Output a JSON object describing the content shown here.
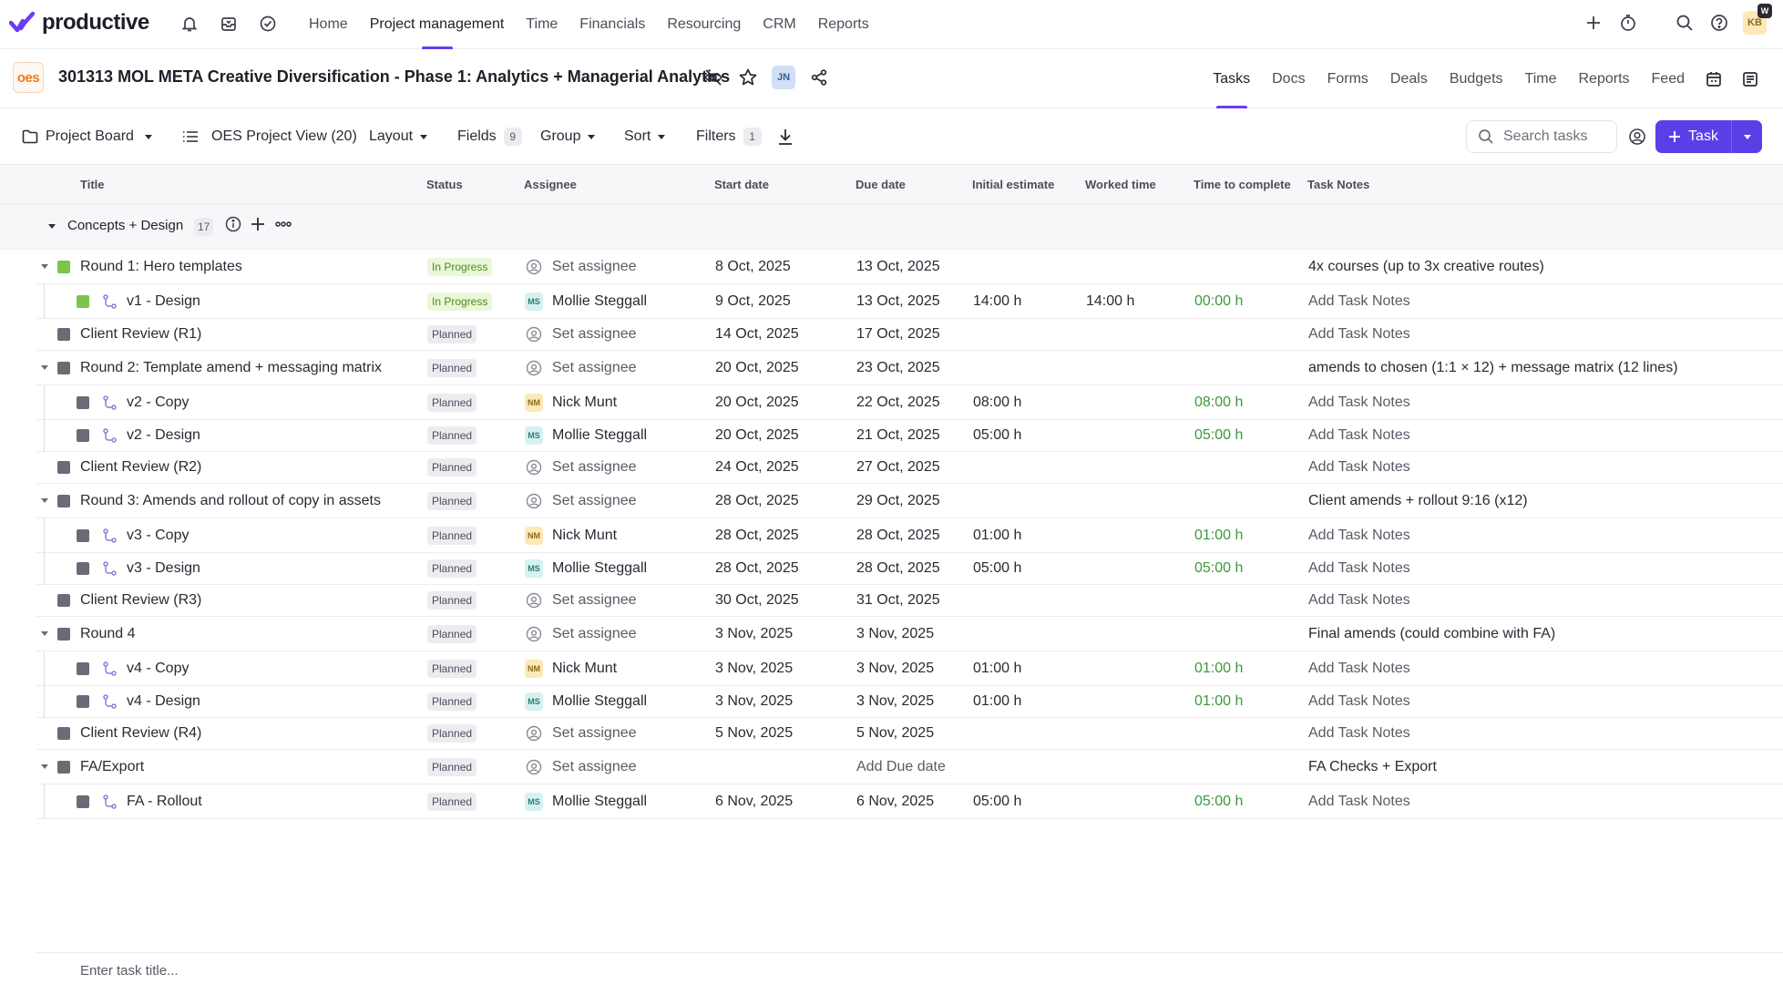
{
  "brand": {
    "name": "productive"
  },
  "nav": {
    "links": [
      "Home",
      "Project management",
      "Time",
      "Financials",
      "Resourcing",
      "CRM",
      "Reports"
    ],
    "active": 1,
    "user_initials": "KB",
    "user_badge": "W"
  },
  "project": {
    "logo_text": "oes",
    "title": "301313 MOL META Creative Diversification - Phase 1: Analytics + Managerial Analytics",
    "member_initials": "JN",
    "tabs": [
      "Tasks",
      "Docs",
      "Forms",
      "Deals",
      "Budgets",
      "Time",
      "Reports",
      "Feed"
    ],
    "active_tab": 0
  },
  "toolbar": {
    "board": "Project Board",
    "view": "OES Project View (20)",
    "layout": "Layout",
    "fields": "Fields",
    "fields_count": "9",
    "group": "Group",
    "sort": "Sort",
    "filters": "Filters",
    "filters_count": "1",
    "search_placeholder": "Search tasks",
    "task_button": "Task"
  },
  "columns": [
    "Title",
    "Status",
    "Assignee",
    "Start date",
    "Due date",
    "Initial estimate",
    "Worked time",
    "Time to complete",
    "Task Notes"
  ],
  "group": {
    "title": "Concepts + Design",
    "count": "17"
  },
  "rows": [
    {
      "level": 0,
      "expandable": true,
      "color": "green",
      "title": "Round 1: Hero templates",
      "status": "In Progress",
      "assignee": "Set assignee",
      "initials": "",
      "start": "8 Oct, 2025",
      "due": "13 Oct, 2025",
      "estimate": "",
      "worked": "",
      "remaining": "",
      "notes": "4x courses (up to 3x creative routes)"
    },
    {
      "level": 1,
      "expandable": false,
      "color": "green",
      "title": "v1 - Design",
      "status": "In Progress",
      "assignee": "Mollie Steggall",
      "initials": "MS",
      "start": "9 Oct, 2025",
      "due": "13 Oct, 2025",
      "estimate": "14:00 h",
      "worked": "14:00 h",
      "remaining": "00:00 h",
      "notes": "Add Task Notes"
    },
    {
      "level": 0,
      "expandable": false,
      "color": "grey",
      "title": "Client Review (R1)",
      "status": "Planned",
      "assignee": "Set assignee",
      "initials": "",
      "start": "14 Oct, 2025",
      "due": "17 Oct, 2025",
      "estimate": "",
      "worked": "",
      "remaining": "",
      "notes": "Add Task Notes"
    },
    {
      "level": 0,
      "expandable": true,
      "color": "grey",
      "title": "Round 2: Template amend + messaging matrix",
      "status": "Planned",
      "assignee": "Set assignee",
      "initials": "",
      "start": "20 Oct, 2025",
      "due": "23 Oct, 2025",
      "estimate": "",
      "worked": "",
      "remaining": "",
      "notes": "amends to chosen (1:1 × 12) + message matrix (12 lines)"
    },
    {
      "level": 1,
      "expandable": false,
      "color": "grey",
      "title": "v2 - Copy",
      "status": "Planned",
      "assignee": "Nick Munt",
      "initials": "NM",
      "start": "20 Oct, 2025",
      "due": "22 Oct, 2025",
      "estimate": "08:00 h",
      "worked": "",
      "remaining": "08:00 h",
      "notes": "Add Task Notes"
    },
    {
      "level": 1,
      "expandable": false,
      "color": "grey",
      "title": "v2 - Design",
      "status": "Planned",
      "assignee": "Mollie Steggall",
      "initials": "MS",
      "start": "20 Oct, 2025",
      "due": "21 Oct, 2025",
      "estimate": "05:00 h",
      "worked": "",
      "remaining": "05:00 h",
      "notes": "Add Task Notes"
    },
    {
      "level": 0,
      "expandable": false,
      "color": "grey",
      "title": "Client Review (R2)",
      "status": "Planned",
      "assignee": "Set assignee",
      "initials": "",
      "start": "24 Oct, 2025",
      "due": "27 Oct, 2025",
      "estimate": "",
      "worked": "",
      "remaining": "",
      "notes": "Add Task Notes"
    },
    {
      "level": 0,
      "expandable": true,
      "color": "grey",
      "title": "Round 3: Amends and rollout of copy in assets",
      "status": "Planned",
      "assignee": "Set assignee",
      "initials": "",
      "start": "28 Oct, 2025",
      "due": "29 Oct, 2025",
      "estimate": "",
      "worked": "",
      "remaining": "",
      "notes": "Client amends + rollout 9:16 (x12)"
    },
    {
      "level": 1,
      "expandable": false,
      "color": "grey",
      "title": "v3 - Copy",
      "status": "Planned",
      "assignee": "Nick Munt",
      "initials": "NM",
      "start": "28 Oct, 2025",
      "due": "28 Oct, 2025",
      "estimate": "01:00 h",
      "worked": "",
      "remaining": "01:00 h",
      "notes": "Add Task Notes"
    },
    {
      "level": 1,
      "expandable": false,
      "color": "grey",
      "title": "v3 - Design",
      "status": "Planned",
      "assignee": "Mollie Steggall",
      "initials": "MS",
      "start": "28 Oct, 2025",
      "due": "28 Oct, 2025",
      "estimate": "05:00 h",
      "worked": "",
      "remaining": "05:00 h",
      "notes": "Add Task Notes"
    },
    {
      "level": 0,
      "expandable": false,
      "color": "grey",
      "title": "Client Review (R3)",
      "status": "Planned",
      "assignee": "Set assignee",
      "initials": "",
      "start": "30 Oct, 2025",
      "due": "31 Oct, 2025",
      "estimate": "",
      "worked": "",
      "remaining": "",
      "notes": "Add Task Notes"
    },
    {
      "level": 0,
      "expandable": true,
      "color": "grey",
      "title": "Round 4",
      "status": "Planned",
      "assignee": "Set assignee",
      "initials": "",
      "start": "3 Nov, 2025",
      "due": "3 Nov, 2025",
      "estimate": "",
      "worked": "",
      "remaining": "",
      "notes": "Final amends (could combine with FA)"
    },
    {
      "level": 1,
      "expandable": false,
      "color": "grey",
      "title": "v4 - Copy",
      "status": "Planned",
      "assignee": "Nick Munt",
      "initials": "NM",
      "start": "3 Nov, 2025",
      "due": "3 Nov, 2025",
      "estimate": "01:00 h",
      "worked": "",
      "remaining": "01:00 h",
      "notes": "Add Task Notes"
    },
    {
      "level": 1,
      "expandable": false,
      "color": "grey",
      "title": "v4 - Design",
      "status": "Planned",
      "assignee": "Mollie Steggall",
      "initials": "MS",
      "start": "3 Nov, 2025",
      "due": "3 Nov, 2025",
      "estimate": "01:00 h",
      "worked": "",
      "remaining": "01:00 h",
      "notes": "Add Task Notes"
    },
    {
      "level": 0,
      "expandable": false,
      "color": "grey",
      "title": "Client Review (R4)",
      "status": "Planned",
      "assignee": "Set assignee",
      "initials": "",
      "start": "5 Nov, 2025",
      "due": "5 Nov, 2025",
      "estimate": "",
      "worked": "",
      "remaining": "",
      "notes": "Add Task Notes"
    },
    {
      "level": 0,
      "expandable": true,
      "color": "grey",
      "title": "FA/Export",
      "status": "Planned",
      "assignee": "Set assignee",
      "initials": "",
      "start": "",
      "due": "Add Due date",
      "estimate": "",
      "worked": "",
      "remaining": "",
      "notes": "FA Checks + Export"
    },
    {
      "level": 1,
      "expandable": false,
      "color": "grey",
      "title": "FA - Rollout",
      "status": "Planned",
      "assignee": "Mollie Steggall",
      "initials": "MS",
      "start": "6 Nov, 2025",
      "due": "6 Nov, 2025",
      "estimate": "05:00 h",
      "worked": "",
      "remaining": "05:00 h",
      "notes": "Add Task Notes"
    }
  ],
  "new_task_placeholder": "Enter task title..."
}
